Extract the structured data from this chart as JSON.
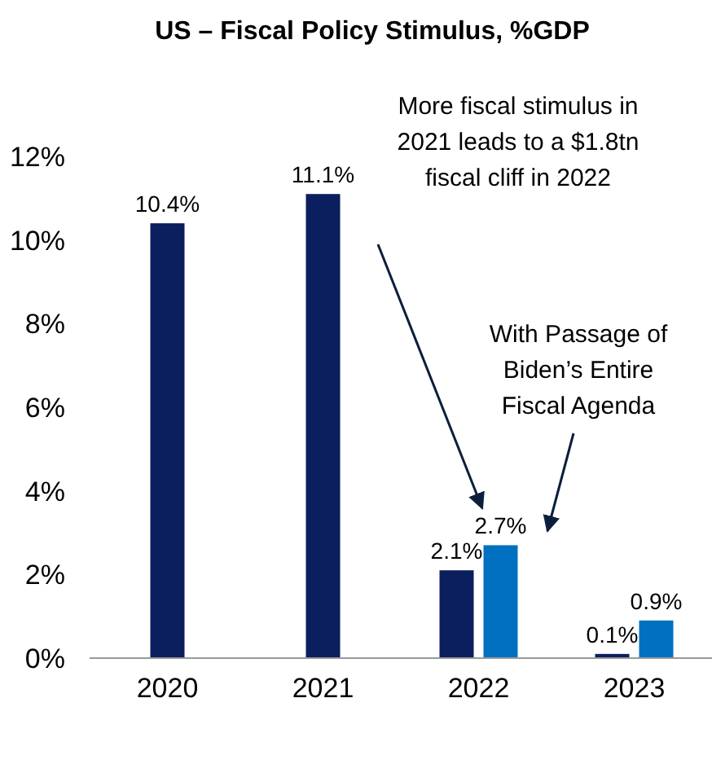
{
  "chart_data": {
    "type": "bar",
    "title": "US – Fiscal Policy Stimulus, %GDP",
    "categories": [
      "2020",
      "2021",
      "2022",
      "2023"
    ],
    "series": [
      {
        "color": "#0b1f5e",
        "values": [
          10.4,
          11.1,
          2.1,
          0.1
        ],
        "value_labels": [
          "10.4%",
          "11.1%",
          "2.1%",
          "0.1%"
        ]
      },
      {
        "color": "#0070c0",
        "values": [
          null,
          null,
          2.7,
          0.9
        ],
        "value_labels": [
          null,
          null,
          "2.7%",
          "0.9%"
        ]
      }
    ],
    "ylim": [
      0,
      12
    ],
    "yticks": [
      {
        "value": 0,
        "label": "0%"
      },
      {
        "value": 2,
        "label": "2%"
      },
      {
        "value": 4,
        "label": "4%"
      },
      {
        "value": 6,
        "label": "6%"
      },
      {
        "value": 8,
        "label": "8%"
      },
      {
        "value": 10,
        "label": "10%"
      },
      {
        "value": 12,
        "label": "12%"
      }
    ],
    "grid": false,
    "annotations": [
      "More fiscal stimulus in\n2021 leads to a $1.8tn\nfiscal cliff in 2022",
      "With Passage of\nBiden’s Entire\nFiscal Agenda"
    ]
  }
}
